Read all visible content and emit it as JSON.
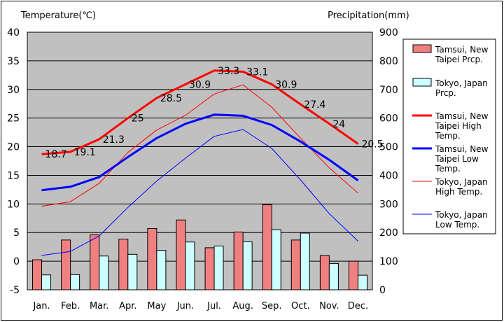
{
  "chart_data": {
    "type": "combo",
    "y_left": {
      "label": "Temperature(℃)",
      "min": -5,
      "max": 40,
      "ticks": [
        -5,
        0,
        5,
        10,
        15,
        20,
        25,
        30,
        35,
        40
      ]
    },
    "y_right": {
      "label": "Precipitation(mm)",
      "min": 0,
      "max": 900,
      "ticks": [
        0,
        100,
        200,
        300,
        400,
        500,
        600,
        700,
        800,
        900
      ]
    },
    "categories": [
      "Jan.",
      "Feb.",
      "Mar.",
      "Apr.",
      "May",
      "Jun.",
      "Jul.",
      "Aug.",
      "Sep.",
      "Oct.",
      "Nov.",
      "Dec."
    ],
    "grid": true,
    "legend_position": "right",
    "bars": [
      {
        "name": "Tamsui, New Taipei Prcp.",
        "lines": [
          "Tamsui, New",
          "Taipei Prcp."
        ],
        "color": "#f08080",
        "axis": "right",
        "values": [
          105,
          174,
          192,
          177,
          214,
          244,
          147,
          202,
          297,
          174,
          120,
          100
        ]
      },
      {
        "name": "Tokyo, Japan Prcp.",
        "lines": [
          "Tokyo, Japan",
          "Prcp."
        ],
        "color": "#ccffff",
        "axis": "right",
        "values": [
          52,
          53,
          118,
          124,
          138,
          167,
          153,
          168,
          210,
          198,
          92,
          51
        ]
      }
    ],
    "lines": [
      {
        "name": "Tamsui, New Taipei High Temp.",
        "lines": [
          "Tamsui, New",
          "Taipei High",
          "Temp."
        ],
        "color": "#ff0000",
        "width": 3,
        "axis": "left",
        "values": [
          18.7,
          19.1,
          21.3,
          25,
          28.5,
          30.9,
          33.3,
          33.1,
          30.9,
          27.4,
          24,
          20.5
        ],
        "labels": [
          "18.7",
          "19.1",
          "21.3",
          "25",
          "28.5",
          "30.9",
          "33.3",
          "33.1",
          "30.9",
          "27.4",
          "24",
          "20.5"
        ]
      },
      {
        "name": "Tamsui, New Taipei Low Temp.",
        "lines": [
          "Tamsui, New",
          "Taipei Low",
          "Temp."
        ],
        "color": "#0000ff",
        "width": 3,
        "axis": "left",
        "values": [
          12.4,
          13,
          14.7,
          18.2,
          21.5,
          24,
          25.6,
          25.4,
          23.8,
          20.9,
          17.7,
          14.1
        ]
      },
      {
        "name": "Tokyo, Japan High Temp.",
        "lines": [
          "Tokyo, Japan",
          "High Temp."
        ],
        "color": "#ff0000",
        "width": 1,
        "axis": "left",
        "values": [
          9.6,
          10.4,
          13.6,
          19,
          22.9,
          25.5,
          29.2,
          30.8,
          26.9,
          21.5,
          16.3,
          11.9
        ]
      },
      {
        "name": "Tokyo, Japan Low Temp.",
        "lines": [
          "Tokyo, Japan",
          "Low Temp."
        ],
        "color": "#0000ff",
        "width": 1,
        "axis": "left",
        "values": [
          1,
          1.7,
          4.4,
          9.4,
          14,
          18,
          21.8,
          23,
          19.7,
          14.2,
          8.3,
          3.5
        ]
      }
    ]
  }
}
